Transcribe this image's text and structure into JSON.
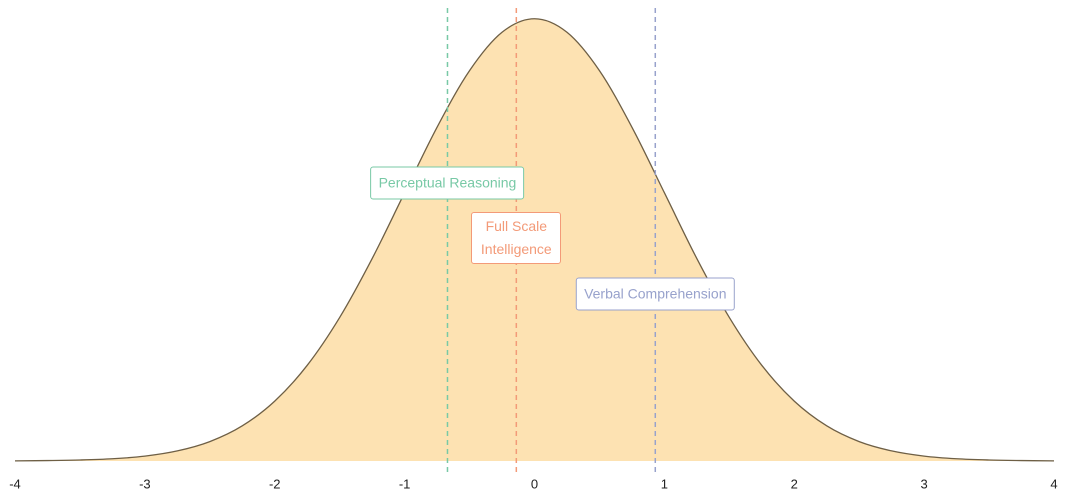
{
  "chart_data": {
    "type": "area",
    "x": [
      -4,
      -3.75,
      -3.5,
      -3.25,
      -3,
      -2.75,
      -2.5,
      -2.25,
      -2,
      -1.75,
      -1.5,
      -1.25,
      -1,
      -0.75,
      -0.5,
      -0.25,
      0,
      0.25,
      0.5,
      0.75,
      1,
      1.25,
      1.5,
      1.75,
      2,
      2.25,
      2.5,
      2.75,
      3,
      3.25,
      3.5,
      3.75,
      4
    ],
    "values": [
      0.0001,
      0.0004,
      0.0009,
      0.002,
      0.0044,
      0.0091,
      0.0175,
      0.0317,
      0.054,
      0.0863,
      0.1295,
      0.1826,
      0.242,
      0.3011,
      0.3521,
      0.3867,
      0.3989,
      0.3867,
      0.3521,
      0.3011,
      0.242,
      0.1826,
      0.1295,
      0.0863,
      0.054,
      0.0317,
      0.0175,
      0.0091,
      0.0044,
      0.002,
      0.0009,
      0.0004,
      0.0001
    ],
    "color": "#fde2b2",
    "line_color": "#6e5f45",
    "xlim": [
      -4,
      4
    ],
    "xticks": [
      -4,
      -3,
      -2,
      -1,
      0,
      1,
      2,
      3,
      4
    ],
    "ylim": [
      0,
      0.405
    ],
    "markers": [
      {
        "name": "Perceptual Reasoning",
        "x": -0.67,
        "color": "#78c9a6"
      },
      {
        "name": "Full Scale Intelligence",
        "x": -0.14,
        "color": "#f39a78"
      },
      {
        "name": "Verbal Comprehension",
        "x": 0.93,
        "color": "#98a2cc"
      }
    ]
  }
}
